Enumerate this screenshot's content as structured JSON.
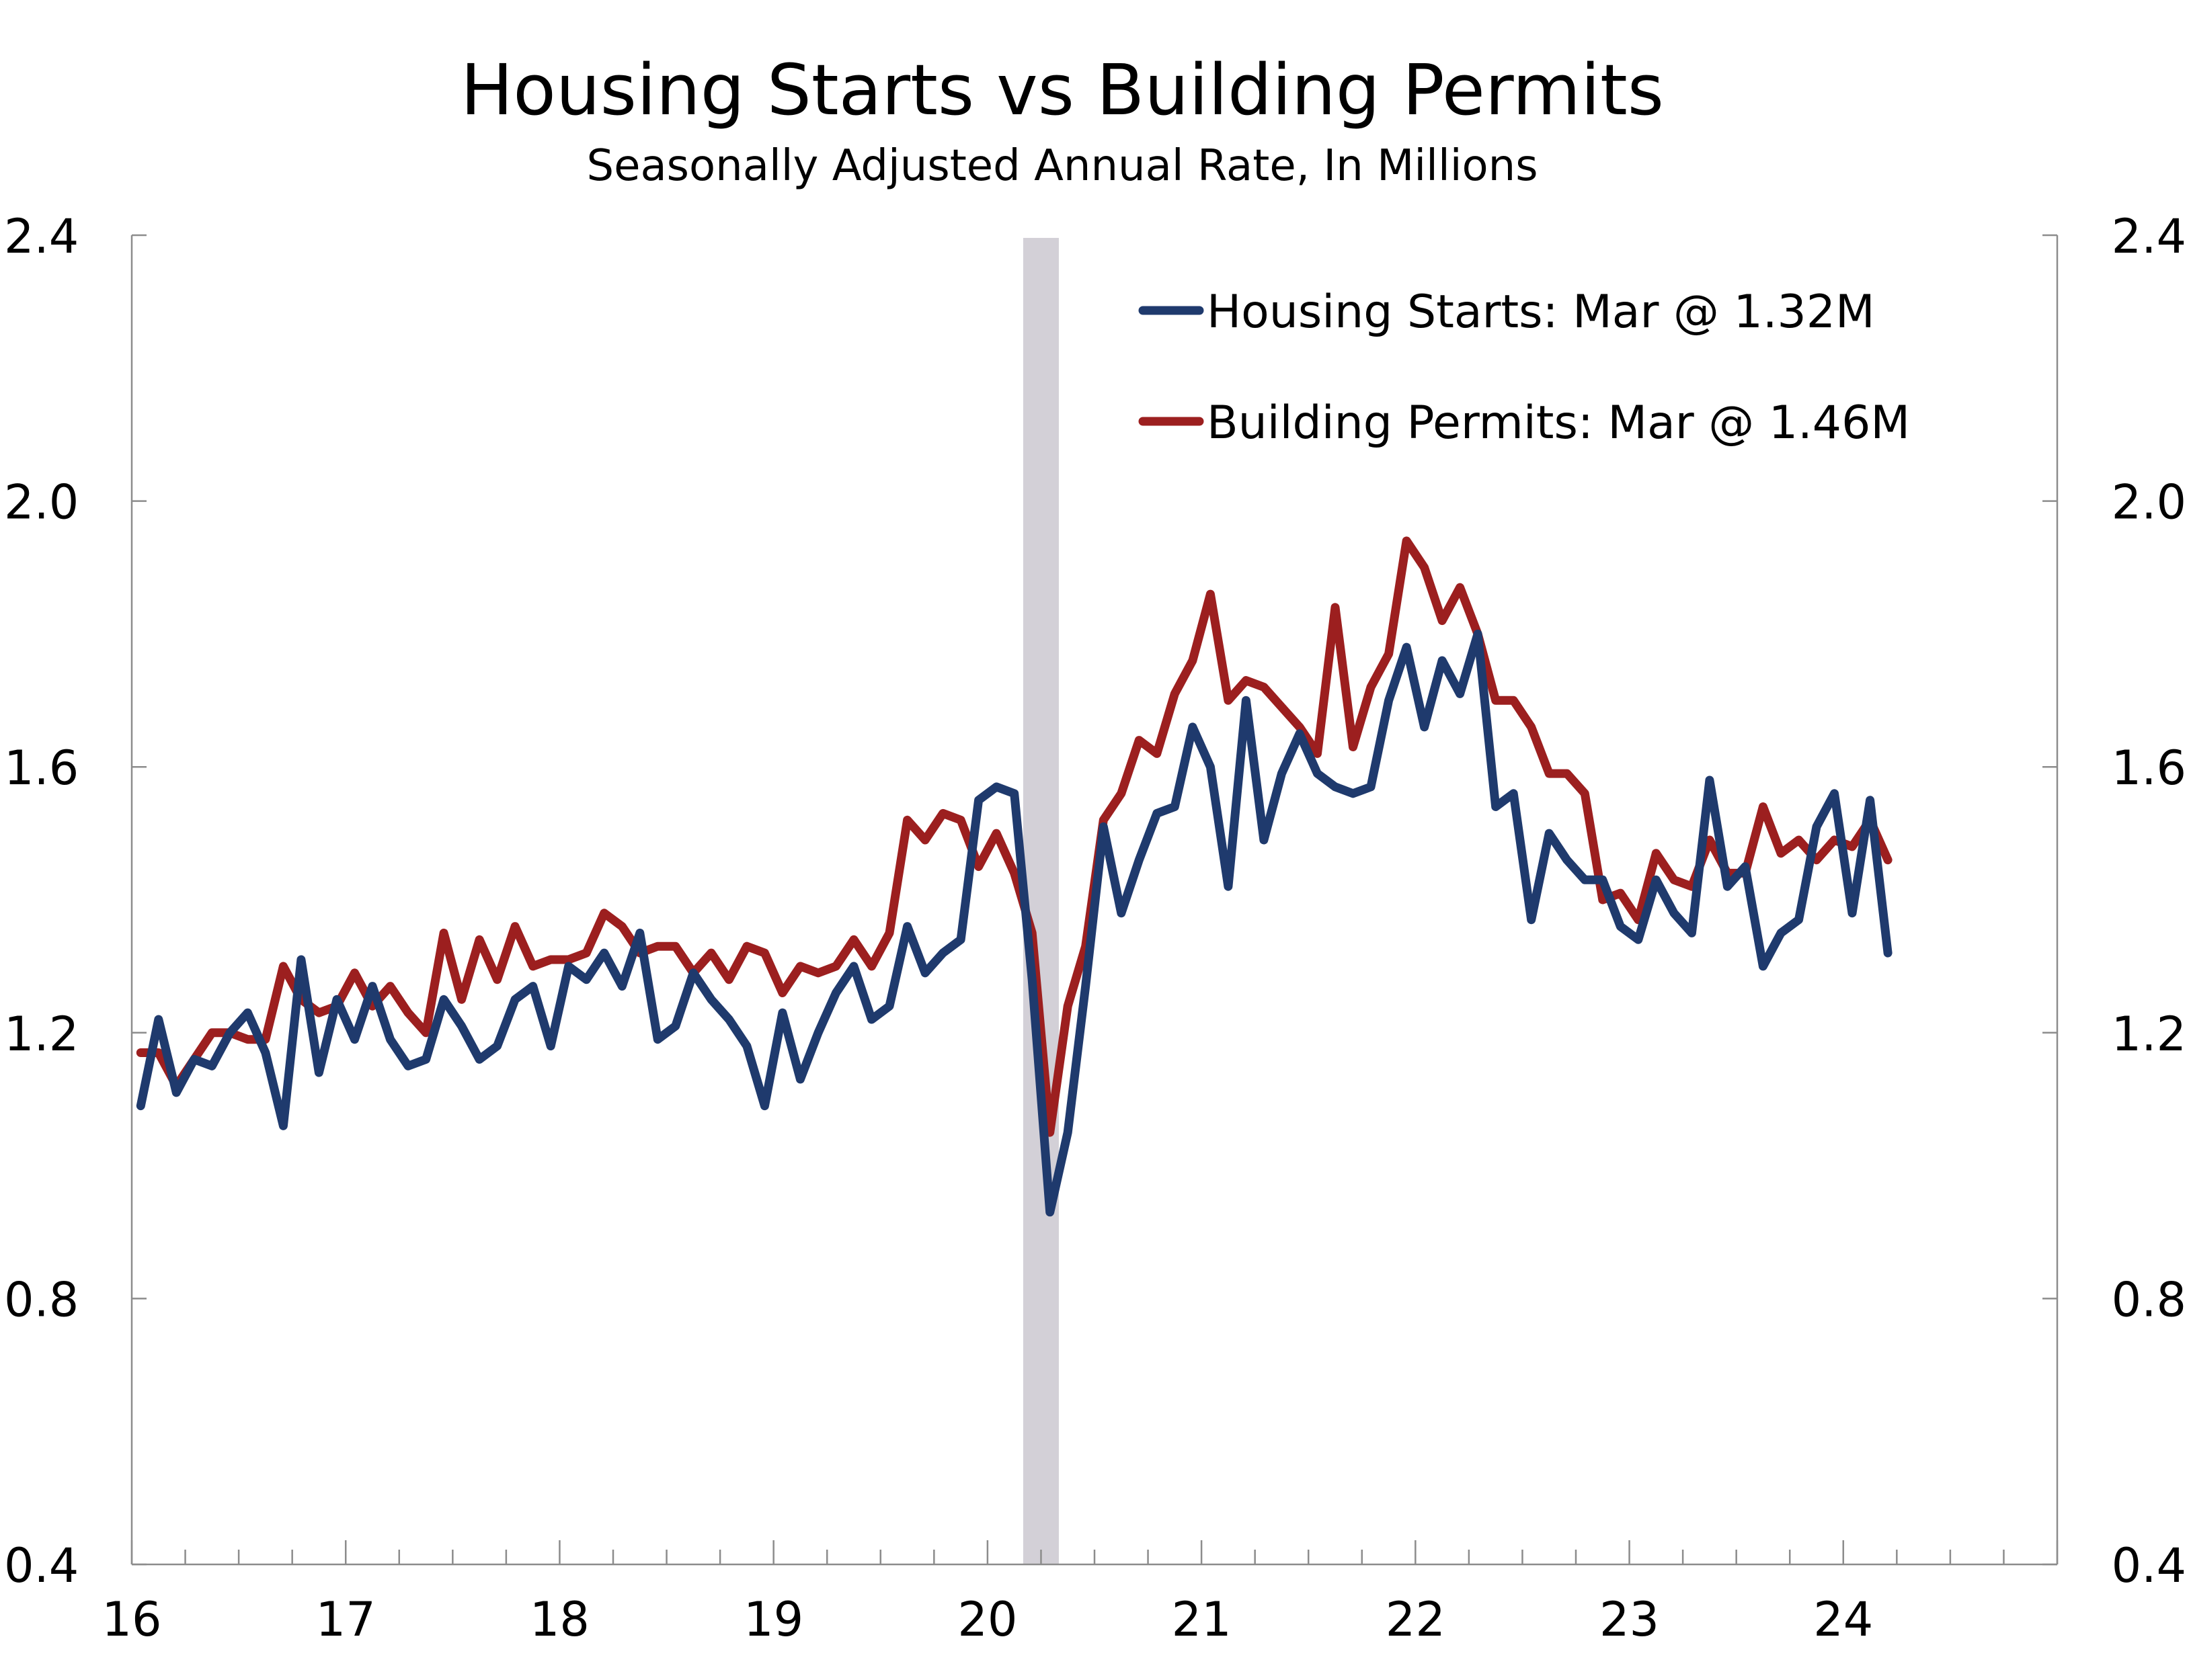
{
  "chart_data": {
    "type": "line",
    "title": "Housing Starts vs Building Permits",
    "subtitle": "Seasonally Adjusted Annual Rate, In Millions",
    "xlabel": "",
    "ylabel": "",
    "x_start": "2016-01",
    "x_range": [
      "2016-01",
      "2024-12"
    ],
    "x_ticks": [
      "16",
      "17",
      "18",
      "19",
      "20",
      "21",
      "22",
      "23",
      "24"
    ],
    "ylim": [
      0.4,
      2.4
    ],
    "y_ticks": [
      "0.4",
      "0.8",
      "1.2",
      "1.6",
      "2.0",
      "2.4"
    ],
    "grid": false,
    "dual_y_axis": true,
    "legend_position": "top-right",
    "recession_shading": {
      "start": "2020-03",
      "end": "2020-04",
      "color": "#d3d0d7"
    },
    "series": [
      {
        "name": "Housing Starts: Mar @ 1.32M",
        "color": "#1f3a6d",
        "values": [
          1.09,
          1.22,
          1.11,
          1.16,
          1.15,
          1.2,
          1.23,
          1.17,
          1.06,
          1.31,
          1.14,
          1.25,
          1.19,
          1.27,
          1.19,
          1.15,
          1.16,
          1.25,
          1.21,
          1.16,
          1.18,
          1.25,
          1.27,
          1.18,
          1.3,
          1.28,
          1.32,
          1.27,
          1.35,
          1.19,
          1.21,
          1.29,
          1.25,
          1.22,
          1.18,
          1.09,
          1.23,
          1.13,
          1.2,
          1.26,
          1.3,
          1.22,
          1.24,
          1.36,
          1.29,
          1.32,
          1.34,
          1.55,
          1.57,
          1.56,
          1.28,
          0.93,
          1.05,
          1.27,
          1.51,
          1.38,
          1.46,
          1.53,
          1.54,
          1.66,
          1.6,
          1.42,
          1.7,
          1.49,
          1.59,
          1.65,
          1.59,
          1.57,
          1.56,
          1.57,
          1.7,
          1.78,
          1.66,
          1.76,
          1.71,
          1.8,
          1.54,
          1.56,
          1.37,
          1.5,
          1.46,
          1.43,
          1.43,
          1.36,
          1.34,
          1.43,
          1.38,
          1.35,
          1.58,
          1.42,
          1.45,
          1.3,
          1.35,
          1.37,
          1.51,
          1.56,
          1.38,
          1.55,
          1.32
        ]
      },
      {
        "name": "Building Permits: Mar @ 1.46M",
        "color": "#9c1f1f",
        "values": [
          1.17,
          1.17,
          1.12,
          1.16,
          1.2,
          1.2,
          1.19,
          1.19,
          1.3,
          1.25,
          1.23,
          1.24,
          1.29,
          1.24,
          1.27,
          1.23,
          1.2,
          1.35,
          1.25,
          1.34,
          1.28,
          1.36,
          1.3,
          1.31,
          1.31,
          1.32,
          1.38,
          1.36,
          1.32,
          1.33,
          1.33,
          1.29,
          1.32,
          1.28,
          1.33,
          1.32,
          1.26,
          1.3,
          1.29,
          1.3,
          1.34,
          1.3,
          1.35,
          1.52,
          1.49,
          1.53,
          1.52,
          1.45,
          1.5,
          1.44,
          1.35,
          1.05,
          1.24,
          1.33,
          1.52,
          1.56,
          1.64,
          1.62,
          1.71,
          1.76,
          1.86,
          1.7,
          1.73,
          1.72,
          1.69,
          1.66,
          1.62,
          1.84,
          1.63,
          1.72,
          1.77,
          1.94,
          1.9,
          1.82,
          1.87,
          1.8,
          1.7,
          1.7,
          1.66,
          1.59,
          1.59,
          1.56,
          1.4,
          1.41,
          1.37,
          1.47,
          1.43,
          1.42,
          1.49,
          1.44,
          1.44,
          1.54,
          1.47,
          1.49,
          1.46,
          1.49,
          1.48,
          1.52,
          1.46
        ]
      }
    ]
  }
}
